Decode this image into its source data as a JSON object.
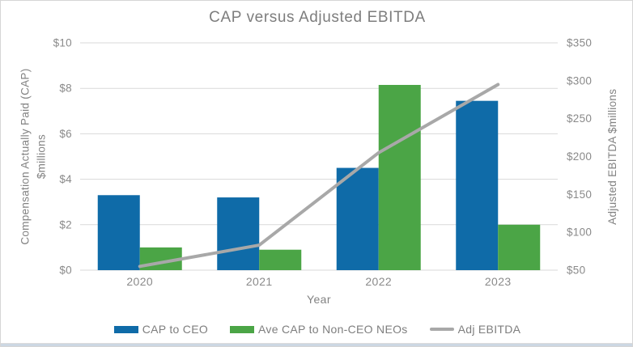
{
  "chart": {
    "title": "CAP versus Adjusted EBITDA",
    "left_axis_title_line1": "Compensation Actually Paid (CAP)",
    "left_axis_title_line2": "$millions",
    "right_axis_title": "Adjusted EBITDA $millions",
    "x_axis_title": "Year"
  },
  "legend": {
    "items": [
      {
        "label": "CAP to CEO",
        "type": "bar",
        "color": "#0F6BA8"
      },
      {
        "label": "Ave CAP to Non-CEO NEOs",
        "type": "bar",
        "color": "#4BA546"
      },
      {
        "label": "Adj EBITDA",
        "type": "line",
        "color": "#A8A8A8"
      }
    ]
  },
  "chart_data": {
    "type": "bar",
    "subtype": "grouped-bars-with-line-overlay",
    "title": "CAP versus Adjusted EBITDA",
    "xlabel": "Year",
    "categories": [
      "2020",
      "2021",
      "2022",
      "2023"
    ],
    "series": [
      {
        "name": "CAP to CEO",
        "type": "bar",
        "axis": "left",
        "color": "#0F6BA8",
        "values": [
          3.3,
          3.2,
          4.5,
          7.45
        ]
      },
      {
        "name": "Ave CAP to Non-CEO NEOs",
        "type": "bar",
        "axis": "left",
        "color": "#4BA546",
        "values": [
          1.0,
          0.9,
          8.15,
          2.0
        ]
      },
      {
        "name": "Adj EBITDA",
        "type": "line",
        "axis": "right",
        "color": "#A8A8A8",
        "values": [
          55,
          83,
          205,
          295
        ]
      }
    ],
    "left_axis": {
      "title": "Compensation Actually Paid (CAP) $millions",
      "min": 0,
      "max": 10,
      "step": 2,
      "tick_labels": [
        "$0",
        "$2",
        "$4",
        "$6",
        "$8",
        "$10"
      ]
    },
    "right_axis": {
      "title": "Adjusted EBITDA $millions",
      "min": 50,
      "max": 350,
      "step": 50,
      "tick_labels": [
        "$50",
        "$100",
        "$150",
        "$200",
        "$250",
        "$300",
        "$350"
      ]
    },
    "grid": true,
    "gridline_color": "#d9d9d9",
    "legend_position": "bottom",
    "text_color": "#8a8a8a"
  }
}
